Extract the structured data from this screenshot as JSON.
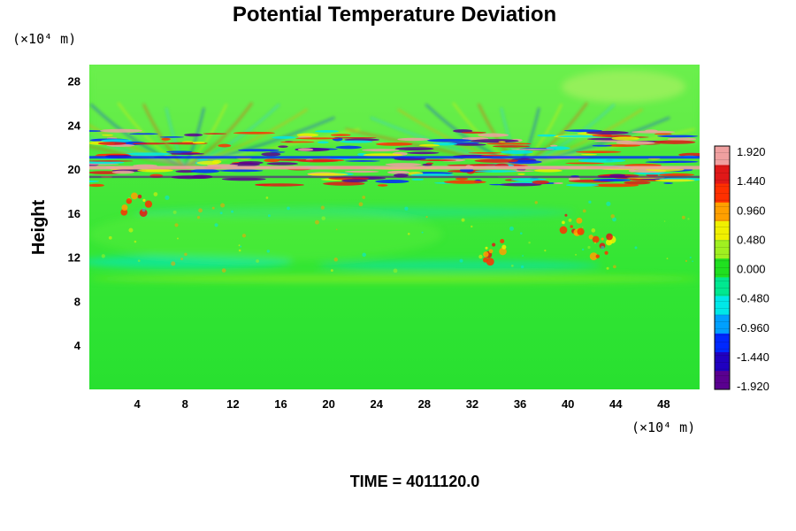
{
  "chart_data": {
    "type": "heatmap",
    "title": "Potential Temperature Deviation",
    "ylabel": "Height",
    "x_unit_label": "(×10⁴ m)",
    "y_unit_label": "(×10⁴ m)",
    "x_ticks": [
      "4",
      "8",
      "12",
      "16",
      "20",
      "24",
      "28",
      "32",
      "36",
      "40",
      "44",
      "48"
    ],
    "y_ticks": [
      "4",
      "8",
      "12",
      "16",
      "20",
      "24",
      "28"
    ],
    "xlim": [
      0,
      51
    ],
    "ylim": [
      0,
      29.5
    ],
    "colorbar": {
      "ticks": [
        "1.920",
        "1.440",
        "0.960",
        "0.480",
        "0.000",
        "-0.480",
        "-0.960",
        "-1.440",
        "-1.920"
      ],
      "range": [
        -1.92,
        1.92
      ],
      "colors": [
        "#5a0090",
        "#2000c0",
        "#0028ff",
        "#00a0ff",
        "#00e8e8",
        "#00e890",
        "#20e020",
        "#a0f020",
        "#f0f000",
        "#ffa000",
        "#ff3000",
        "#e01818",
        "#f0a0a0"
      ]
    },
    "features": {
      "active_band_height": [
        18.5,
        23.5
      ],
      "wave_fan_centers_x": [
        8,
        36
      ],
      "blob_locations": [
        [
          4,
          17
        ],
        [
          34,
          12.5
        ],
        [
          40,
          15
        ],
        [
          43,
          13
        ]
      ]
    },
    "footer_label": "TIME = 4011120.0"
  }
}
